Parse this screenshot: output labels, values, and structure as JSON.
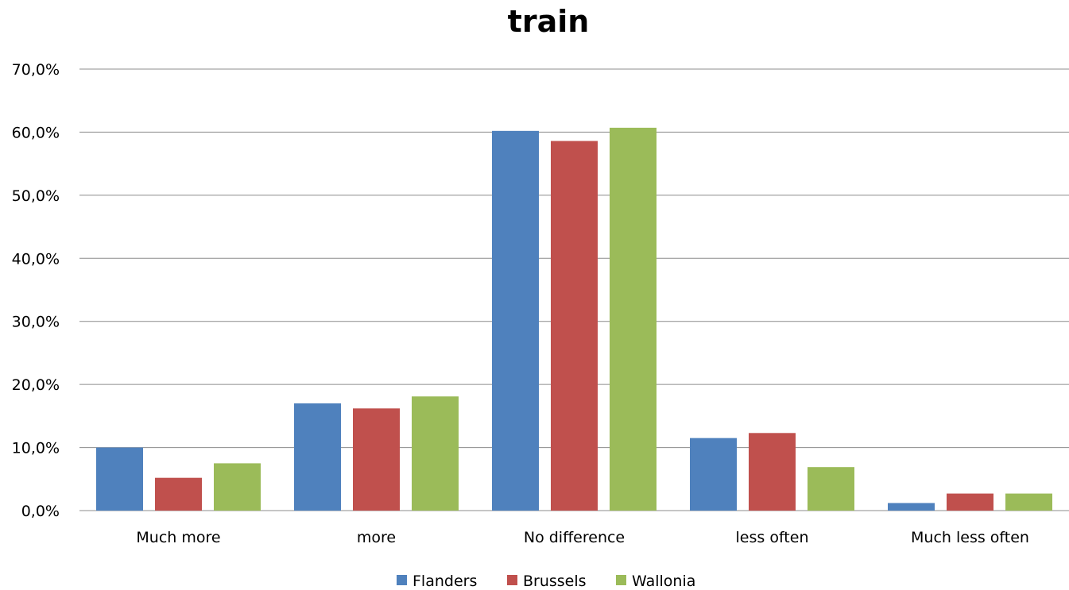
{
  "chart_data": {
    "type": "bar",
    "title": "train",
    "xlabel": "",
    "ylabel": "",
    "ylim": [
      0,
      70
    ],
    "yticks": [
      "0,0%",
      "10,0%",
      "20,0%",
      "30,0%",
      "40,0%",
      "50,0%",
      "60,0%",
      "70,0%"
    ],
    "ytick_values": [
      0,
      10,
      20,
      30,
      40,
      50,
      60,
      70
    ],
    "grid": true,
    "legend": "bottom",
    "categories": [
      "Much more",
      "more",
      "No difference",
      "less often",
      "Much less often"
    ],
    "series": [
      {
        "name": "Flanders",
        "color": "#4F81BD",
        "values": [
          10.0,
          17.0,
          60.2,
          11.5,
          1.2
        ]
      },
      {
        "name": "Brussels",
        "color": "#C0504D",
        "values": [
          5.2,
          16.2,
          58.6,
          12.3,
          2.7
        ]
      },
      {
        "name": "Wallonia",
        "color": "#9BBB59",
        "values": [
          7.5,
          18.1,
          60.7,
          6.9,
          2.7
        ]
      }
    ]
  }
}
